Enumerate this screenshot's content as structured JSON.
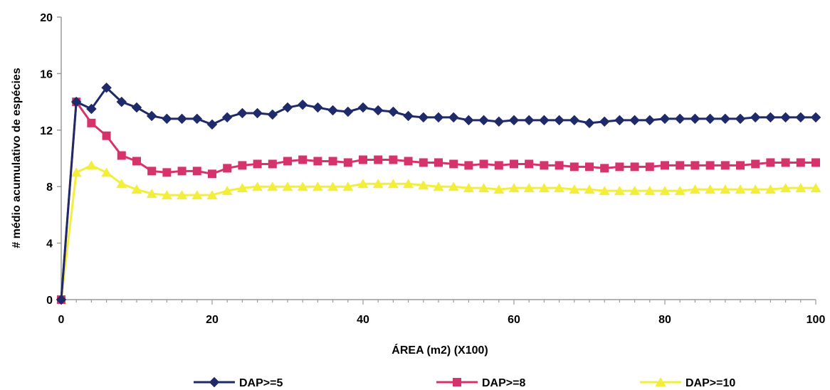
{
  "chart_data": {
    "type": "line",
    "title": "",
    "xlabel": "ÁREA (m2)  (X100)",
    "ylabel": "# médio acumulativo de espécies",
    "xlim": [
      0,
      100
    ],
    "ylim": [
      0,
      20
    ],
    "x_ticks": [
      "0",
      "20",
      "40",
      "60",
      "80",
      "100"
    ],
    "y_ticks": [
      "0",
      "4",
      "8",
      "12",
      "16",
      "20"
    ],
    "grid": false,
    "legend_position": "bottom",
    "x": [
      0,
      2,
      4,
      6,
      8,
      10,
      12,
      14,
      16,
      18,
      20,
      22,
      24,
      26,
      28,
      30,
      32,
      34,
      36,
      38,
      40,
      42,
      44,
      46,
      48,
      50,
      52,
      54,
      56,
      58,
      60,
      62,
      64,
      66,
      68,
      70,
      72,
      74,
      76,
      78,
      80,
      82,
      84,
      86,
      88,
      90,
      92,
      94,
      96,
      98,
      100
    ],
    "series": [
      {
        "name": "DAP>=5",
        "color": "#1f2a6b",
        "marker": "diamond",
        "values": [
          0,
          14.0,
          13.5,
          15.0,
          14.0,
          13.6,
          13.0,
          12.8,
          12.8,
          12.8,
          12.4,
          12.9,
          13.2,
          13.2,
          13.1,
          13.6,
          13.8,
          13.6,
          13.4,
          13.3,
          13.6,
          13.4,
          13.3,
          13.0,
          12.9,
          12.9,
          12.9,
          12.7,
          12.7,
          12.6,
          12.7,
          12.7,
          12.7,
          12.7,
          12.7,
          12.5,
          12.6,
          12.7,
          12.7,
          12.7,
          12.8,
          12.8,
          12.8,
          12.8,
          12.8,
          12.8,
          12.9,
          12.9,
          12.9,
          12.9,
          12.9
        ]
      },
      {
        "name": "DAP>=8",
        "color": "#d6336c",
        "marker": "square",
        "values": [
          0,
          14.0,
          12.5,
          11.6,
          10.2,
          9.8,
          9.1,
          9.0,
          9.1,
          9.1,
          8.9,
          9.3,
          9.5,
          9.6,
          9.6,
          9.8,
          9.9,
          9.8,
          9.8,
          9.7,
          9.9,
          9.9,
          9.9,
          9.8,
          9.7,
          9.7,
          9.6,
          9.5,
          9.6,
          9.5,
          9.6,
          9.6,
          9.5,
          9.5,
          9.4,
          9.4,
          9.3,
          9.4,
          9.4,
          9.4,
          9.5,
          9.5,
          9.5,
          9.5,
          9.5,
          9.5,
          9.6,
          9.7,
          9.7,
          9.7,
          9.7
        ]
      },
      {
        "name": "DAP>=10",
        "color": "#f2ee3a",
        "marker": "triangle",
        "values": [
          0,
          9.0,
          9.5,
          9.0,
          8.2,
          7.8,
          7.5,
          7.4,
          7.4,
          7.4,
          7.4,
          7.7,
          7.9,
          8.0,
          8.0,
          8.0,
          8.0,
          8.0,
          8.0,
          8.0,
          8.2,
          8.2,
          8.2,
          8.2,
          8.1,
          8.0,
          8.0,
          7.9,
          7.9,
          7.8,
          7.9,
          7.9,
          7.9,
          7.9,
          7.8,
          7.8,
          7.7,
          7.7,
          7.7,
          7.7,
          7.7,
          7.7,
          7.8,
          7.8,
          7.8,
          7.8,
          7.8,
          7.8,
          7.9,
          7.9,
          7.9
        ]
      }
    ]
  }
}
